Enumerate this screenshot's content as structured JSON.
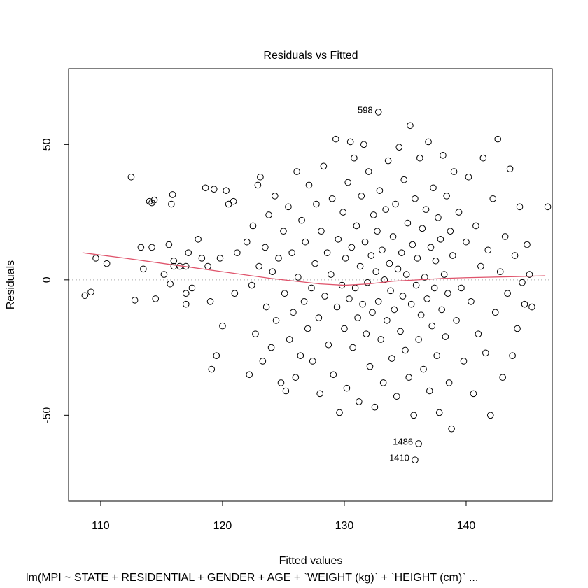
{
  "chart_data": {
    "type": "scatter",
    "title": "Residuals vs Fitted",
    "xlabel": "Fitted values",
    "ylabel": "Residuals",
    "subtitle": "lm(MPI ~ STATE + RESIDENTIAL + GENDER + AGE + `WEIGHT (kg)` + `HEIGHT (cm)` ...",
    "xlim": [
      107.36,
      147.07
    ],
    "ylim": [
      -81.7,
      78.0
    ],
    "xticks": [
      110,
      120,
      130,
      140
    ],
    "yticks": [
      -50,
      0,
      50
    ],
    "color": "#000000",
    "reference_line": {
      "value": 0,
      "color": "#aaaaaa"
    },
    "x": [
      108.7,
      109.2,
      109.6,
      110.5,
      112.5,
      112.8,
      113.3,
      113.5,
      114,
      114.2,
      114.4,
      114.2,
      114.5,
      115.2,
      115.6,
      115.7,
      115.8,
      115.9,
      116,
      116,
      116.5,
      117,
      117,
      117.2,
      117,
      117.5,
      118,
      118.3,
      118.6,
      118.8,
      119,
      119.1,
      119.3,
      119.5,
      119.8,
      120,
      120.3,
      120.5,
      120.9,
      121,
      121.2,
      122,
      122.2,
      122.4,
      122.5,
      122.7,
      122.9,
      123,
      123.1,
      123.3,
      123.5,
      123.6,
      123.8,
      124,
      124.1,
      124.3,
      124.4,
      124.6,
      124.8,
      125,
      125.1,
      125.2,
      125.4,
      125.5,
      125.7,
      125.8,
      126,
      126.1,
      126.2,
      126.4,
      126.5,
      126.7,
      126.8,
      127,
      127.1,
      127.3,
      127.4,
      127.6,
      127.7,
      127.9,
      128,
      128.1,
      128.3,
      128.4,
      128.6,
      128.7,
      128.9,
      129,
      129.1,
      129.3,
      129.4,
      129.5,
      129.6,
      129.8,
      129.9,
      130.0,
      130.1,
      130.2,
      130.3,
      130.4,
      130.5,
      130.6,
      130.7,
      130.8,
      130.9,
      131.0,
      131.1,
      131.2,
      131.3,
      131.4,
      131.5,
      131.6,
      131.7,
      131.8,
      131.9,
      132.0,
      132.1,
      132.2,
      132.3,
      132.4,
      132.5,
      132.6,
      132.7,
      132.8,
      132.9,
      133.0,
      133.1,
      133.2,
      133.3,
      133.4,
      133.5,
      133.6,
      133.7,
      133.8,
      133.9,
      134.0,
      134.1,
      134.2,
      134.3,
      134.4,
      134.5,
      134.6,
      134.7,
      134.8,
      134.9,
      135.0,
      135.1,
      135.2,
      135.3,
      135.4,
      135.5,
      135.6,
      135.7,
      135.8,
      135.9,
      136.0,
      136.1,
      136.2,
      136.3,
      136.4,
      136.5,
      136.6,
      136.7,
      136.8,
      136.9,
      137.0,
      137.1,
      137.2,
      137.3,
      137.4,
      137.5,
      137.6,
      137.7,
      137.8,
      137.9,
      138.0,
      138.1,
      138.2,
      138.3,
      138.4,
      138.5,
      138.6,
      138.7,
      138.8,
      138.9,
      139,
      139.2,
      139.4,
      139.6,
      139.8,
      140,
      140.2,
      140.4,
      140.6,
      140.8,
      141,
      141.2,
      141.4,
      141.6,
      141.8,
      142,
      142.2,
      142.4,
      142.6,
      142.8,
      143,
      143.2,
      143.4,
      143.6,
      143.8,
      144,
      144.2,
      144.4,
      144.6,
      144.8,
      145,
      145.2,
      145.4,
      146.7
    ],
    "values": [
      -5.8,
      -4.5,
      8,
      6,
      38,
      -7.5,
      12,
      4,
      29,
      28.5,
      29.5,
      12,
      -7,
      2,
      13,
      -1.5,
      28,
      31.5,
      7,
      5,
      5,
      5,
      -9,
      10,
      -5,
      -3,
      15,
      8,
      34,
      5,
      -8,
      -33,
      33.5,
      -28,
      8,
      -17,
      33,
      28,
      29,
      -5,
      10,
      14,
      -35,
      -2,
      20,
      -20,
      35,
      5,
      38,
      -30,
      12,
      -10,
      24,
      -25,
      3,
      31,
      -15,
      8,
      -38,
      18,
      -5,
      -41,
      27,
      -22,
      10,
      -12,
      -36,
      40,
      1,
      -28,
      22,
      -8,
      14,
      -18,
      35,
      -3,
      -30,
      6,
      28,
      -14,
      -42,
      18,
      42,
      -6,
      10,
      -24,
      2,
      30,
      -35,
      52,
      -10,
      15,
      -49,
      -2,
      25,
      -18,
      8,
      -40,
      36,
      -7,
      51,
      12,
      -25,
      45,
      -3,
      20,
      -14,
      -45,
      5,
      31,
      -9,
      50,
      14,
      -20,
      -1,
      40,
      -32,
      9,
      -12,
      24,
      -47,
      3,
      18,
      -8,
      33,
      -22,
      11,
      -38,
      0,
      26,
      -15,
      44,
      6,
      -4,
      -29,
      16,
      -11,
      28,
      -43,
      4,
      49,
      -19,
      10,
      -6,
      37,
      -26,
      2,
      21,
      -36,
      57,
      -9,
      13,
      -50,
      30,
      -2,
      8,
      -22,
      45,
      -13,
      19,
      -33,
      1,
      26,
      -7,
      51,
      -41,
      12,
      -17,
      34,
      -3,
      7,
      -28,
      23,
      -49,
      15,
      -11,
      46,
      2,
      -21,
      31,
      -5,
      -38,
      18,
      -55,
      9,
      40,
      -15,
      25,
      -3,
      -30,
      14,
      38,
      -8,
      -42,
      20,
      -20,
      5,
      45,
      -27,
      11,
      -50,
      30,
      -12,
      52,
      3,
      -36,
      16,
      -5,
      41,
      -28,
      9,
      -18,
      27,
      -1,
      -9,
      13,
      2,
      -10,
      27
    ],
    "annotations": [
      {
        "text": "598",
        "x": 132.8,
        "y": 62
      },
      {
        "text": "1486",
        "x": 136.1,
        "y": -60.5
      },
      {
        "text": "1410",
        "x": 135.8,
        "y": -66.5
      }
    ],
    "smooth": {
      "color": "#df536b",
      "x": [
        108.5,
        112,
        116,
        120,
        124,
        128,
        130,
        132,
        134,
        136,
        138,
        140,
        142,
        144,
        146.5
      ],
      "values": [
        10,
        8,
        5.5,
        3,
        0.5,
        -1.5,
        -2,
        -1.5,
        -0.5,
        0,
        0.5,
        0.8,
        1,
        1.2,
        1.5
      ]
    }
  }
}
